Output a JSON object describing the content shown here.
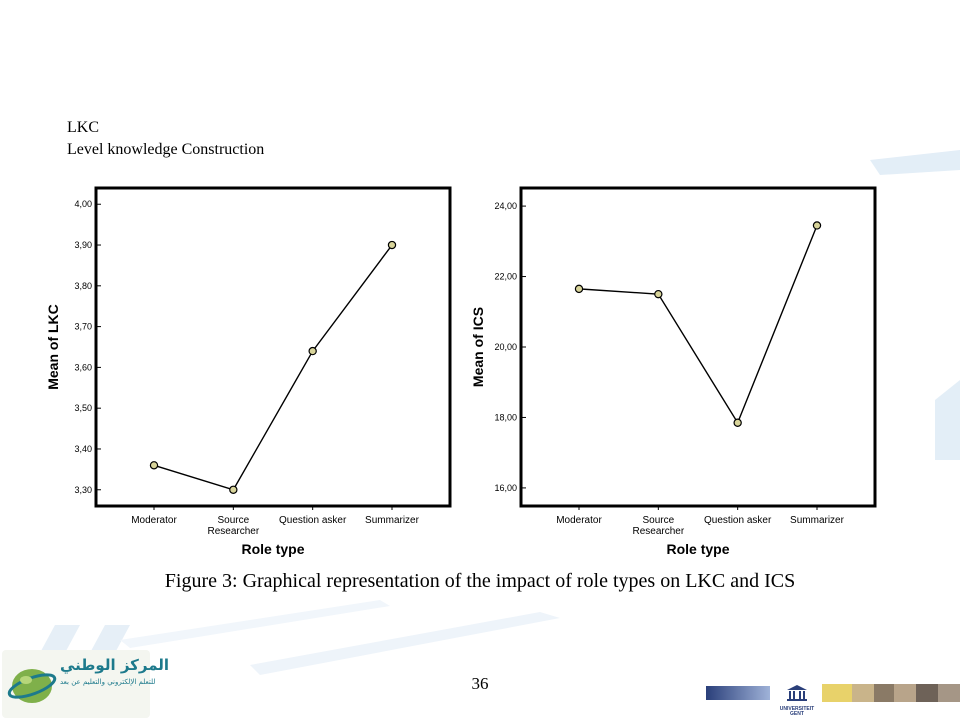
{
  "heading": {
    "line1": "LKC",
    "line2": "Level knowledge Construction"
  },
  "caption": "Figure 3: Graphical representation of the impact of role types on LKC and ICS",
  "page_number": "36",
  "footer": {
    "logo_left_arabic": "المركز الوطني",
    "logo_left_arabic_sub": "للتعلم الإلكتروني والتعليم عن بعد",
    "logo_right_text_line1": "UNIVERSITEIT",
    "logo_right_text_line2": "GENT"
  },
  "colors": {
    "marker_fill": "#d8d49a",
    "line": "#000000",
    "deco_blue": "#dbe9f4"
  },
  "chart_data": [
    {
      "type": "line",
      "categories": [
        "Moderator",
        "Source\nResearcher",
        "Question asker",
        "Summarizer"
      ],
      "values": [
        3.36,
        3.3,
        3.64,
        3.9
      ],
      "xlabel": "Role type",
      "ylabel": "Mean of LKC",
      "ylim": [
        3.27,
        4.03
      ],
      "yticks": [
        "4,00",
        "3,90",
        "3,80",
        "3,70",
        "3,60",
        "3,50",
        "3,40",
        "3,30"
      ],
      "ytick_values": [
        4.0,
        3.9,
        3.8,
        3.7,
        3.6,
        3.5,
        3.4,
        3.3
      ],
      "grid": false
    },
    {
      "type": "line",
      "categories": [
        "Moderator",
        "Source\nResearcher",
        "Question asker",
        "Summarizer"
      ],
      "values": [
        21.65,
        21.5,
        17.85,
        23.45
      ],
      "xlabel": "Role type",
      "ylabel": "Mean of ICS",
      "ylim": [
        15.6,
        24.4
      ],
      "yticks": [
        "24,00",
        "22,00",
        "20,00",
        "18,00",
        "16,00"
      ],
      "ytick_values": [
        24,
        22,
        20,
        18,
        16
      ],
      "grid": false
    }
  ]
}
